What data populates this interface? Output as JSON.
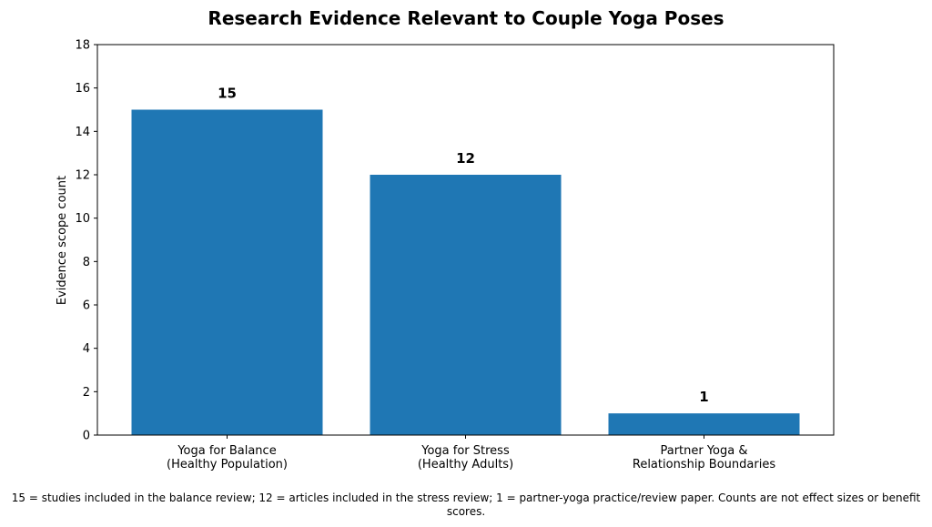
{
  "chart_data": {
    "type": "bar",
    "title": "Research Evidence Relevant to Couple Yoga Poses",
    "xlabel": "",
    "ylabel": "Evidence scope count",
    "ylim": [
      0,
      18
    ],
    "yticks": [
      0,
      2,
      4,
      6,
      8,
      10,
      12,
      14,
      16,
      18
    ],
    "categories": [
      [
        "Yoga for Balance",
        "(Healthy Population)"
      ],
      [
        "Yoga for Stress",
        "(Healthy Adults)"
      ],
      [
        "Partner Yoga &",
        "Relationship Boundaries"
      ]
    ],
    "values": [
      15,
      12,
      1
    ],
    "data_labels": [
      "15",
      "12",
      "1"
    ],
    "bar_color": "#1f77b4",
    "grid": false,
    "legend": "none"
  },
  "caption": "15 = studies included in the balance review; 12 = articles included in the stress review; 1 = partner-yoga practice/review paper. Counts are not effect sizes or benefit scores."
}
